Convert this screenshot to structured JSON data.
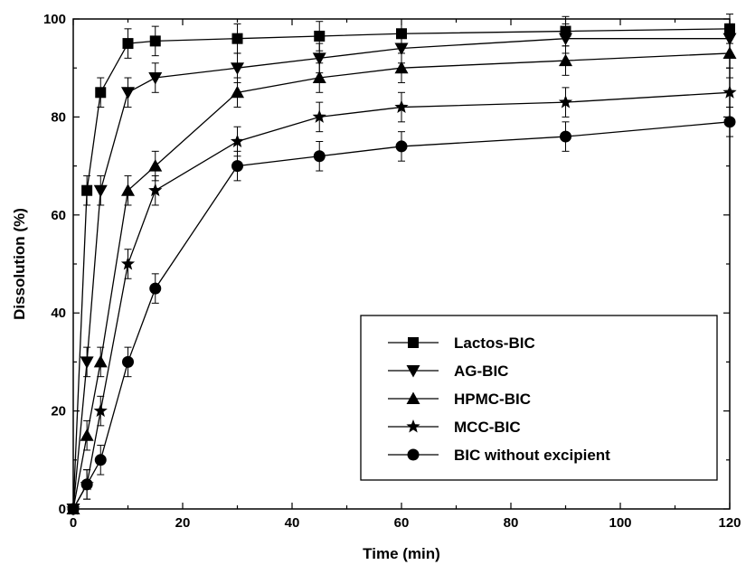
{
  "chart_data": {
    "type": "line",
    "title": "",
    "xlabel": "Time (min)",
    "ylabel": "Dissolution (%)",
    "xlim": [
      0,
      120
    ],
    "ylim": [
      0,
      100
    ],
    "x_ticks": [
      0,
      20,
      40,
      60,
      80,
      100,
      120
    ],
    "y_ticks": [
      0,
      20,
      40,
      60,
      80,
      100
    ],
    "grid": false,
    "legend_position": "bottom-right",
    "x": [
      0,
      2.5,
      5,
      10,
      15,
      30,
      45,
      60,
      90,
      120
    ],
    "series": [
      {
        "name": "Lactos-BIC",
        "marker": "square",
        "values": [
          0,
          65,
          85,
          95,
          95.5,
          96,
          96.5,
          97,
          97.5,
          98
        ],
        "errors": [
          0,
          3,
          3,
          3,
          3,
          3,
          3,
          3,
          3,
          3
        ]
      },
      {
        "name": "AG-BIC",
        "marker": "triangle-down",
        "values": [
          0,
          30,
          65,
          85,
          88,
          90,
          92,
          94,
          96,
          96
        ],
        "errors": [
          0,
          3,
          3,
          3,
          3,
          3,
          3,
          3,
          3,
          3
        ]
      },
      {
        "name": "HPMC-BIC",
        "marker": "triangle-up",
        "values": [
          0,
          15,
          30,
          65,
          70,
          85,
          88,
          90,
          91.5,
          93
        ],
        "errors": [
          0,
          3,
          3,
          3,
          3,
          3,
          3,
          3,
          3,
          3
        ]
      },
      {
        "name": "MCC-BIC",
        "marker": "star",
        "values": [
          0,
          5,
          20,
          50,
          65,
          75,
          80,
          82,
          83,
          85
        ],
        "errors": [
          0,
          3,
          3,
          3,
          3,
          3,
          3,
          3,
          3,
          3
        ]
      },
      {
        "name": "BIC without excipient",
        "marker": "circle",
        "values": [
          0,
          5,
          10,
          30,
          45,
          70,
          72,
          74,
          76,
          79
        ],
        "errors": [
          0,
          3,
          3,
          3,
          3,
          3,
          3,
          3,
          3,
          3
        ]
      }
    ]
  }
}
